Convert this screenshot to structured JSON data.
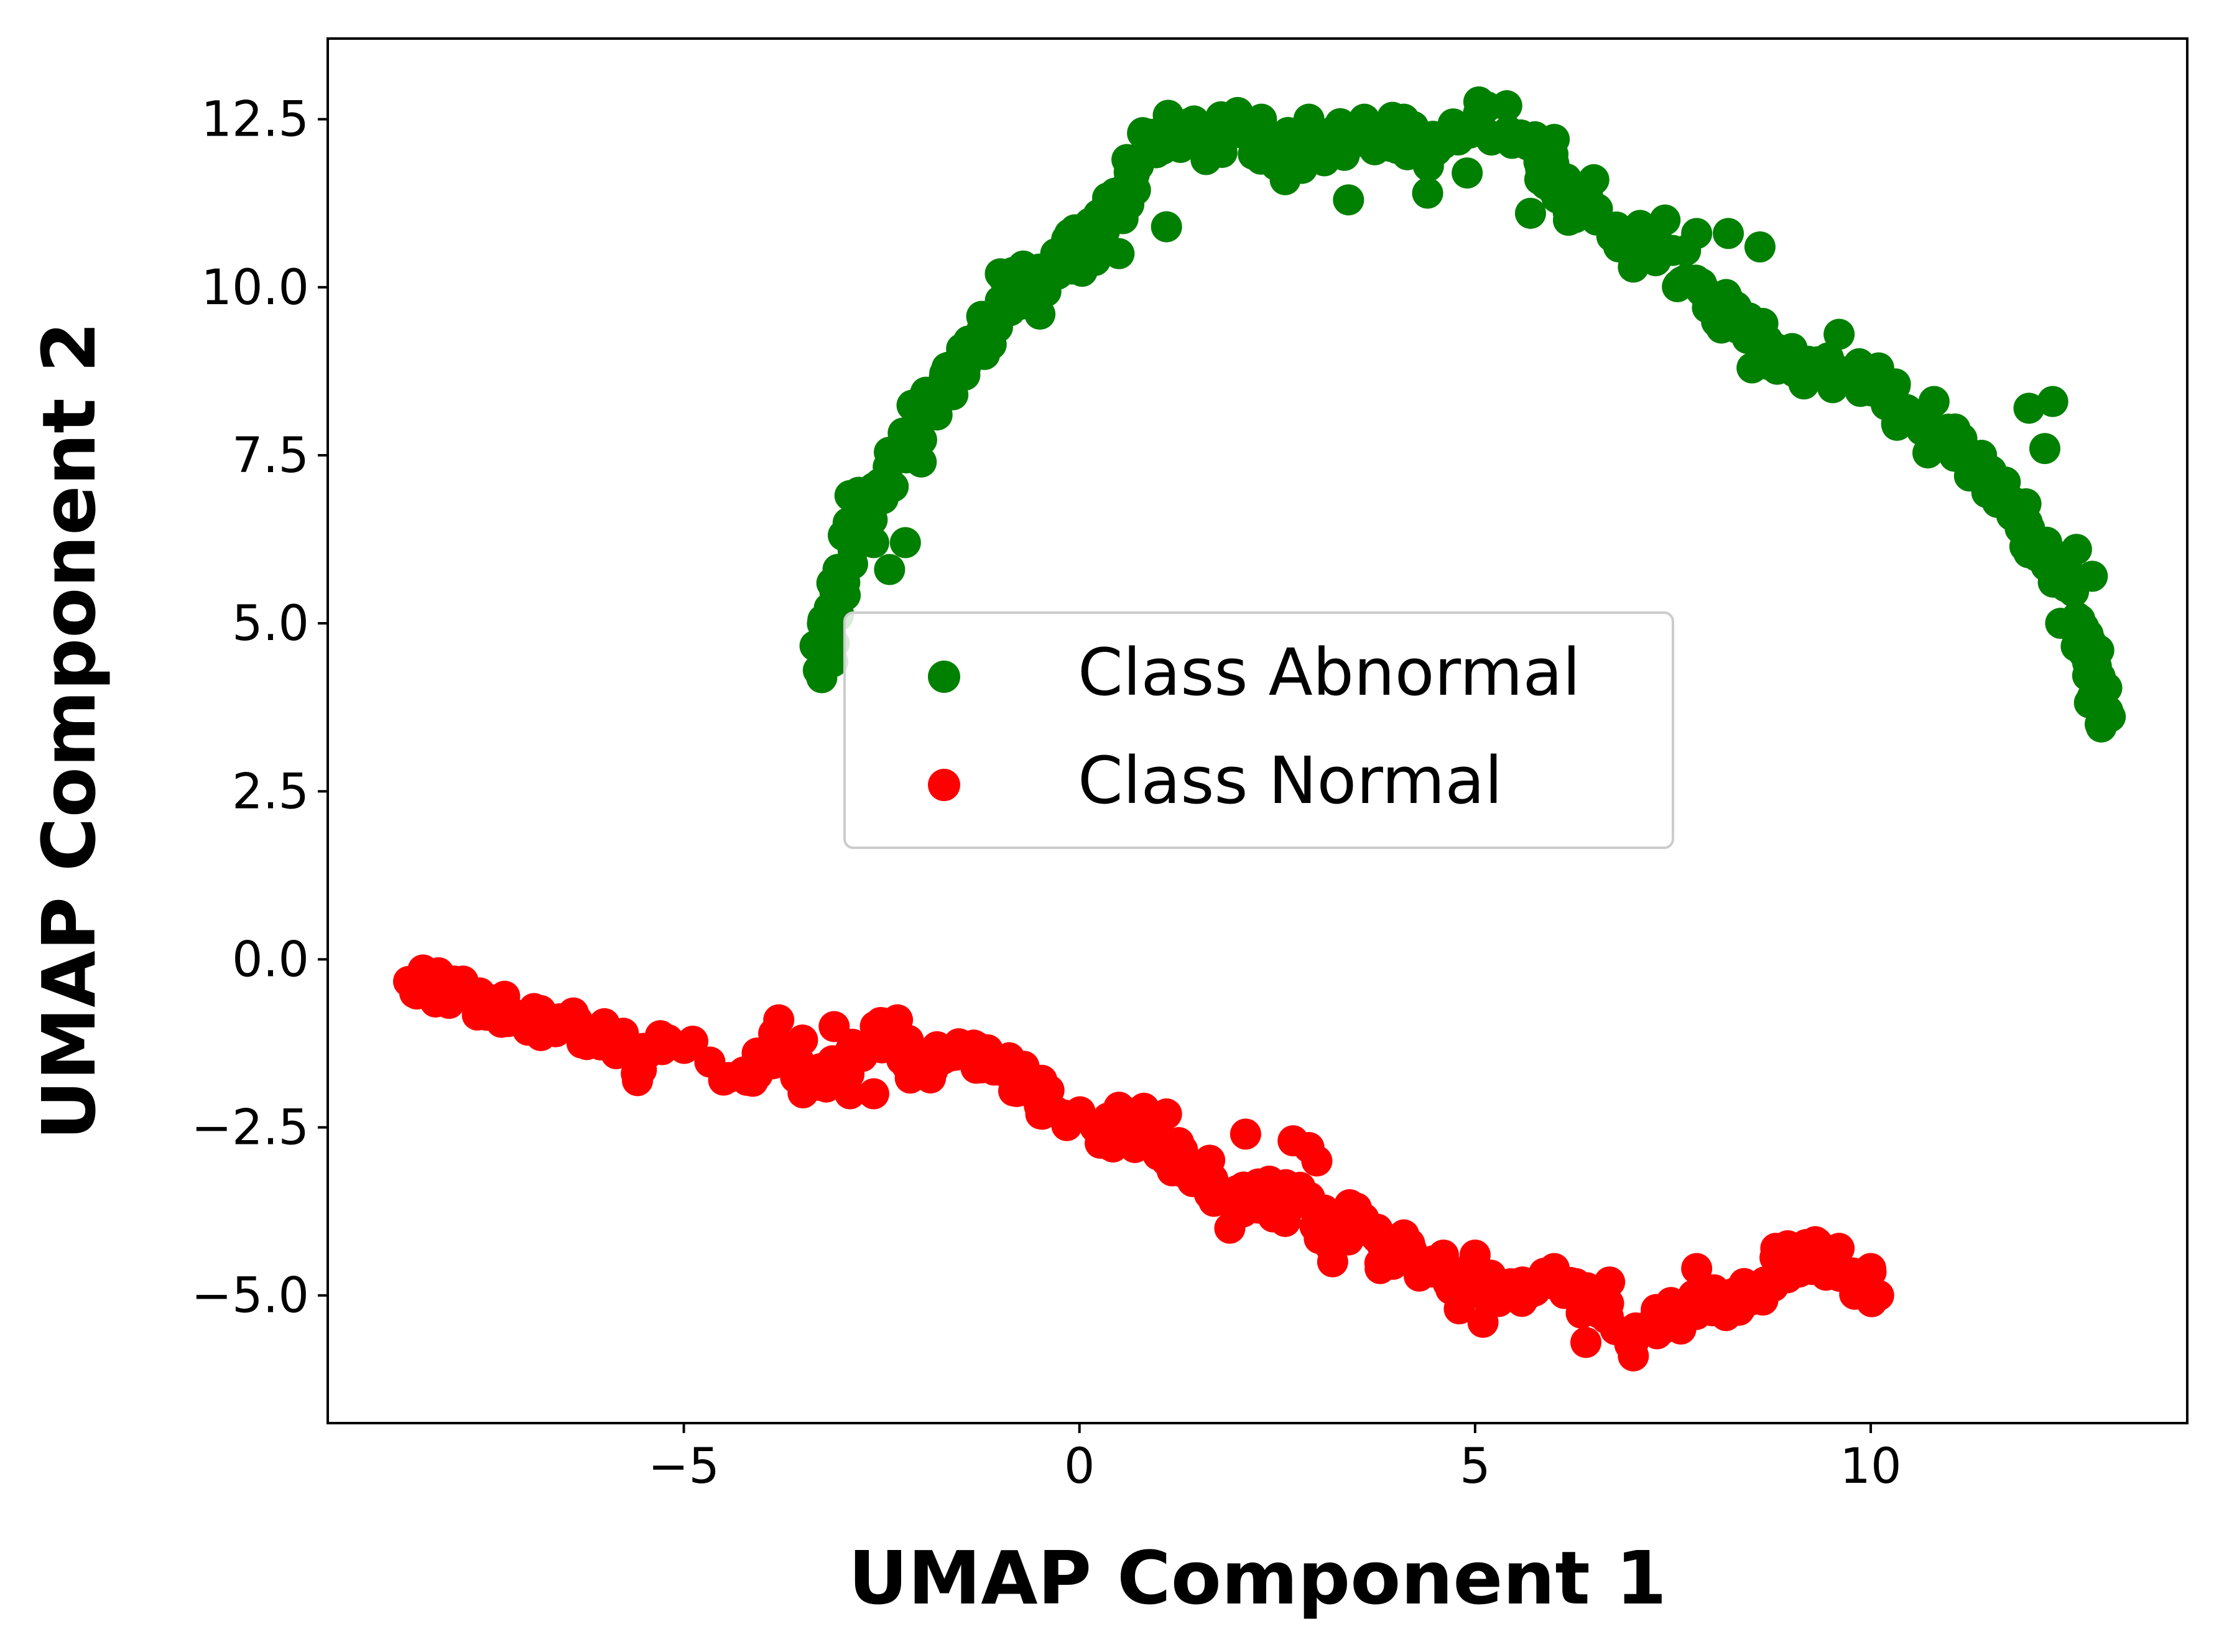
{
  "chart_data": {
    "type": "scatter",
    "xlabel": "UMAP Component 1",
    "ylabel": "UMAP Component 2",
    "xlim": [
      -9.5,
      14.0
    ],
    "ylim": [
      -6.9,
      13.7
    ],
    "x_ticks": [
      {
        "value": -5,
        "label": "−5"
      },
      {
        "value": 0,
        "label": "0"
      },
      {
        "value": 5,
        "label": "5"
      },
      {
        "value": 10,
        "label": "10"
      }
    ],
    "y_ticks": [
      {
        "value": -5.0,
        "label": "−5.0"
      },
      {
        "value": -2.5,
        "label": "−2.5"
      },
      {
        "value": 0.0,
        "label": "0.0"
      },
      {
        "value": 2.5,
        "label": "2.5"
      },
      {
        "value": 5.0,
        "label": "5.0"
      },
      {
        "value": 7.5,
        "label": "7.5"
      },
      {
        "value": 10.0,
        "label": "10.0"
      },
      {
        "value": 12.5,
        "label": "12.5"
      }
    ],
    "grid": false,
    "legend_placement": "center",
    "series": [
      {
        "name": "Class Abnormal",
        "color": "#008000",
        "path": [
          [
            -3.3,
            4.3
          ],
          [
            -3.2,
            4.6
          ],
          [
            -3.1,
            5.3
          ],
          [
            -3.0,
            5.9
          ],
          [
            -2.9,
            6.5
          ],
          [
            -2.7,
            6.8
          ],
          [
            -2.5,
            6.9
          ],
          [
            -2.3,
            7.4
          ],
          [
            -2.1,
            7.8
          ],
          [
            -1.9,
            8.2
          ],
          [
            -1.7,
            8.6
          ],
          [
            -1.5,
            8.9
          ],
          [
            -1.3,
            9.1
          ],
          [
            -1.1,
            9.4
          ],
          [
            -0.9,
            9.8
          ],
          [
            -0.7,
            10.1
          ],
          [
            -0.5,
            10.2
          ],
          [
            -0.3,
            10.3
          ],
          [
            -0.1,
            10.5
          ],
          [
            0.1,
            10.7
          ],
          [
            0.3,
            10.9
          ],
          [
            0.5,
            11.2
          ],
          [
            0.7,
            11.8
          ],
          [
            0.9,
            12.2
          ],
          [
            1.2,
            12.3
          ],
          [
            1.5,
            12.2
          ],
          [
            1.8,
            12.3
          ],
          [
            2.1,
            12.2
          ],
          [
            2.4,
            12.1
          ],
          [
            2.7,
            12.0
          ],
          [
            3.0,
            12.1
          ],
          [
            3.3,
            12.2
          ],
          [
            3.6,
            12.3
          ],
          [
            3.9,
            12.3
          ],
          [
            4.2,
            12.2
          ],
          [
            4.5,
            12.0
          ],
          [
            4.8,
            12.3
          ],
          [
            5.1,
            12.6
          ],
          [
            5.4,
            12.4
          ],
          [
            5.7,
            12.0
          ],
          [
            5.9,
            11.8
          ],
          [
            6.1,
            11.5
          ],
          [
            6.3,
            11.2
          ],
          [
            6.6,
            11.0
          ],
          [
            6.9,
            10.8
          ],
          [
            7.2,
            10.6
          ],
          [
            7.5,
            10.3
          ],
          [
            7.8,
            10.1
          ],
          [
            8.1,
            9.7
          ],
          [
            8.4,
            9.3
          ],
          [
            8.7,
            9.0
          ],
          [
            9.0,
            8.8
          ],
          [
            9.3,
            8.7
          ],
          [
            9.6,
            8.8
          ],
          [
            9.9,
            8.6
          ],
          [
            10.2,
            8.4
          ],
          [
            10.5,
            8.1
          ],
          [
            10.8,
            7.8
          ],
          [
            11.1,
            7.6
          ],
          [
            11.4,
            7.3
          ],
          [
            11.7,
            7.0
          ],
          [
            11.9,
            6.6
          ],
          [
            12.1,
            6.2
          ],
          [
            12.3,
            5.9
          ],
          [
            12.5,
            5.6
          ],
          [
            12.7,
            5.1
          ],
          [
            12.8,
            4.5
          ],
          [
            12.9,
            4.0
          ],
          [
            12.9,
            3.5
          ]
        ],
        "path_bands": [
          [
            0.0,
            0.4
          ],
          [
            0.5,
            0.6
          ],
          [
            1.0,
            0.35
          ],
          [
            0.4,
            0.3
          ],
          [
            0.3,
            0.55
          ]
        ],
        "points": [
          [
            -3.3,
            4.3
          ],
          [
            -3.1,
            4.7
          ],
          [
            -3.0,
            5.8
          ],
          [
            -2.9,
            6.9
          ],
          [
            -2.6,
            6.2
          ],
          [
            -2.4,
            5.8
          ],
          [
            -2.2,
            6.2
          ],
          [
            -2.0,
            7.4
          ],
          [
            -1.8,
            8.1
          ],
          [
            -1.6,
            8.4
          ],
          [
            -1.4,
            9.2
          ],
          [
            -1.2,
            9.0
          ],
          [
            -1.0,
            10.2
          ],
          [
            -1.0,
            9.8
          ],
          [
            -0.5,
            9.6
          ],
          [
            -0.3,
            10.5
          ],
          [
            0.2,
            10.4
          ],
          [
            0.5,
            10.5
          ],
          [
            0.6,
            11.9
          ],
          [
            0.8,
            12.3
          ],
          [
            1.1,
            10.9
          ],
          [
            1.3,
            12.4
          ],
          [
            1.6,
            11.9
          ],
          [
            2.0,
            12.6
          ],
          [
            2.3,
            12.5
          ],
          [
            2.6,
            11.6
          ],
          [
            2.9,
            12.5
          ],
          [
            3.4,
            11.3
          ],
          [
            3.6,
            12.5
          ],
          [
            4.1,
            12.5
          ],
          [
            4.4,
            11.4
          ],
          [
            4.9,
            11.7
          ],
          [
            5.1,
            12.7
          ],
          [
            5.4,
            12.7
          ],
          [
            5.7,
            11.1
          ],
          [
            6.0,
            12.2
          ],
          [
            6.5,
            11.6
          ],
          [
            7.0,
            10.3
          ],
          [
            7.4,
            11.0
          ],
          [
            7.8,
            10.8
          ],
          [
            8.2,
            10.8
          ],
          [
            8.6,
            10.6
          ],
          [
            8.5,
            8.8
          ],
          [
            8.9,
            8.8
          ],
          [
            9.6,
            9.3
          ],
          [
            10.1,
            8.8
          ],
          [
            10.8,
            8.3
          ],
          [
            11.4,
            7.5
          ],
          [
            12.0,
            8.2
          ],
          [
            12.3,
            8.3
          ],
          [
            12.2,
            7.6
          ],
          [
            11.6,
            6.8
          ],
          [
            12.1,
            6.0
          ],
          [
            12.6,
            6.1
          ],
          [
            12.8,
            5.7
          ],
          [
            12.7,
            4.9
          ],
          [
            12.9,
            4.2
          ],
          [
            12.9,
            3.5
          ],
          [
            12.8,
            3.9
          ],
          [
            12.4,
            5.0
          ]
        ],
        "spread": 0.28
      },
      {
        "name": "Class Normal",
        "color": "#ff0000",
        "path": [
          [
            -8.4,
            -0.3
          ],
          [
            -8.2,
            -0.4
          ],
          [
            -8.0,
            -0.45
          ],
          [
            -7.7,
            -0.6
          ],
          [
            -7.4,
            -0.7
          ],
          [
            -7.1,
            -0.8
          ],
          [
            -6.8,
            -0.9
          ],
          [
            -6.5,
            -1.0
          ],
          [
            -6.2,
            -1.1
          ],
          [
            -5.9,
            -1.2
          ],
          [
            -5.7,
            -1.4
          ],
          [
            -5.5,
            -1.6
          ],
          [
            -5.2,
            -1.2
          ],
          [
            -4.2,
            -1.8
          ],
          [
            -4.0,
            -1.5
          ],
          [
            -3.8,
            -1.3
          ],
          [
            -3.6,
            -1.6
          ],
          [
            -3.4,
            -1.8
          ],
          [
            -3.1,
            -1.7
          ],
          [
            -2.8,
            -1.5
          ],
          [
            -2.6,
            -1.2
          ],
          [
            -2.4,
            -1.0
          ],
          [
            -2.2,
            -1.6
          ],
          [
            -2.0,
            -1.6
          ],
          [
            -1.8,
            -1.4
          ],
          [
            -1.5,
            -1.4
          ],
          [
            -1.2,
            -1.5
          ],
          [
            -0.9,
            -1.6
          ],
          [
            -0.7,
            -1.8
          ],
          [
            -0.5,
            -2.0
          ],
          [
            -0.4,
            -2.2
          ],
          [
            0.2,
            -2.5
          ],
          [
            0.4,
            -2.6
          ],
          [
            0.6,
            -2.4
          ],
          [
            0.8,
            -2.4
          ],
          [
            1.0,
            -2.6
          ],
          [
            1.2,
            -2.9
          ],
          [
            1.5,
            -3.1
          ],
          [
            1.8,
            -3.4
          ],
          [
            2.0,
            -3.6
          ],
          [
            2.3,
            -3.5
          ],
          [
            2.5,
            -3.8
          ],
          [
            2.8,
            -3.3
          ],
          [
            3.0,
            -3.8
          ],
          [
            3.2,
            -4.2
          ],
          [
            3.5,
            -3.7
          ],
          [
            3.8,
            -4.3
          ],
          [
            4.1,
            -4.4
          ],
          [
            4.4,
            -4.6
          ],
          [
            4.7,
            -4.8
          ],
          [
            5.0,
            -4.7
          ],
          [
            5.3,
            -5.0
          ],
          [
            5.6,
            -4.9
          ],
          [
            6.0,
            -4.8
          ],
          [
            6.3,
            -5.0
          ],
          [
            6.6,
            -5.1
          ],
          [
            6.8,
            -5.5
          ],
          [
            7.1,
            -5.6
          ],
          [
            7.4,
            -5.3
          ],
          [
            7.7,
            -5.2
          ],
          [
            8.0,
            -5.0
          ],
          [
            8.3,
            -5.2
          ],
          [
            8.6,
            -4.8
          ],
          [
            8.9,
            -4.5
          ],
          [
            9.2,
            -4.4
          ],
          [
            9.5,
            -4.6
          ],
          [
            9.8,
            -4.8
          ],
          [
            10.1,
            -4.9
          ]
        ],
        "path_bands": [
          [
            0.0,
            0.18
          ],
          [
            0.2,
            0.3
          ],
          [
            0.5,
            0.32
          ],
          [
            0.6,
            0.3
          ],
          [
            0.85,
            0.3
          ]
        ],
        "points": [
          [
            -8.4,
            -0.5
          ],
          [
            -8.1,
            -0.2
          ],
          [
            -7.6,
            -0.7
          ],
          [
            -6.8,
            -0.95
          ],
          [
            -6.0,
            -1.05
          ],
          [
            -5.6,
            -1.7
          ],
          [
            -5.3,
            -1.2
          ],
          [
            -4.2,
            -1.8
          ],
          [
            -3.8,
            -0.9
          ],
          [
            -3.5,
            -1.2
          ],
          [
            -3.2,
            -1.9
          ],
          [
            -3.1,
            -1.0
          ],
          [
            -2.9,
            -2.0
          ],
          [
            -2.6,
            -2.0
          ],
          [
            -2.3,
            -0.9
          ],
          [
            -2.1,
            -1.7
          ],
          [
            -1.8,
            -1.3
          ],
          [
            -1.3,
            -1.3
          ],
          [
            -0.8,
            -1.7
          ],
          [
            -0.4,
            -2.2
          ],
          [
            0.2,
            -2.5
          ],
          [
            0.5,
            -2.2
          ],
          [
            0.7,
            -2.8
          ],
          [
            1.1,
            -2.3
          ],
          [
            1.1,
            -3.0
          ],
          [
            1.4,
            -3.2
          ],
          [
            1.7,
            -3.6
          ],
          [
            1.9,
            -4.0
          ],
          [
            2.1,
            -2.6
          ],
          [
            2.4,
            -3.3
          ],
          [
            2.6,
            -3.9
          ],
          [
            2.7,
            -2.7
          ],
          [
            2.9,
            -2.8
          ],
          [
            3.0,
            -3.0
          ],
          [
            3.2,
            -4.5
          ],
          [
            3.5,
            -3.7
          ],
          [
            3.8,
            -4.6
          ],
          [
            4.1,
            -4.1
          ],
          [
            4.3,
            -4.7
          ],
          [
            4.6,
            -4.4
          ],
          [
            4.8,
            -5.2
          ],
          [
            5.0,
            -4.4
          ],
          [
            5.1,
            -5.4
          ],
          [
            5.6,
            -4.8
          ],
          [
            6.0,
            -4.6
          ],
          [
            6.4,
            -5.7
          ],
          [
            6.7,
            -4.8
          ],
          [
            7.0,
            -5.9
          ],
          [
            7.3,
            -5.3
          ],
          [
            7.6,
            -5.5
          ],
          [
            7.8,
            -4.6
          ],
          [
            8.1,
            -5.1
          ],
          [
            8.5,
            -4.9
          ],
          [
            8.8,
            -4.3
          ],
          [
            9.1,
            -4.6
          ],
          [
            9.3,
            -4.2
          ],
          [
            9.6,
            -4.3
          ],
          [
            9.9,
            -4.7
          ],
          [
            10.1,
            -5.0
          ],
          [
            10.0,
            -4.6
          ]
        ],
        "spread": 0.22
      }
    ]
  }
}
